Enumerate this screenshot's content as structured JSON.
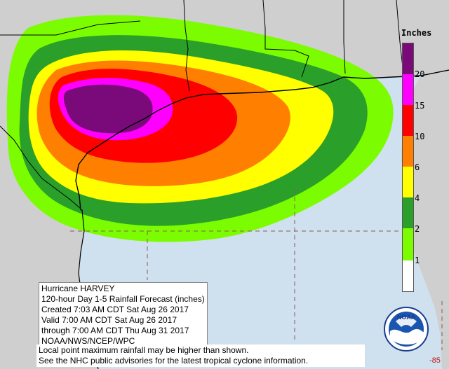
{
  "legend": {
    "title": "Inches",
    "ticks": [
      "20",
      "15",
      "10",
      "6",
      "4",
      "2",
      "1"
    ],
    "colors": {
      "gt20": "#7a0a7a",
      "15_20": "#ff00ff",
      "10_15": "#ff0000",
      "6_10": "#ff8000",
      "4_6": "#ffff00",
      "2_4": "#2aa02a",
      "1_2": "#7cfc00",
      "lt1": "#ffffff"
    }
  },
  "info": {
    "line1": "Hurricane HARVEY",
    "line2": "120-hour Day 1-5 Rainfall Forecast (inches)",
    "line3": "Created 7:03 AM CDT Sat Aug 26 2017",
    "line4": "Valid 7:00 AM CDT Sat Aug 26 2017",
    "line5": "through 7:00 AM CDT Thu Aug 31 2017",
    "line6": "NOAA/NWS/NCEP/WPC"
  },
  "footer": {
    "line1": "Local point maximum rainfall may be higher than shown.",
    "line2": "See the NHC public advisories for the latest tropical cyclone information."
  },
  "logo": {
    "text": "NOAA"
  },
  "corner_label": "-85",
  "map_colors": {
    "water": "#cfe0ef",
    "land": "#cfcfcf"
  }
}
